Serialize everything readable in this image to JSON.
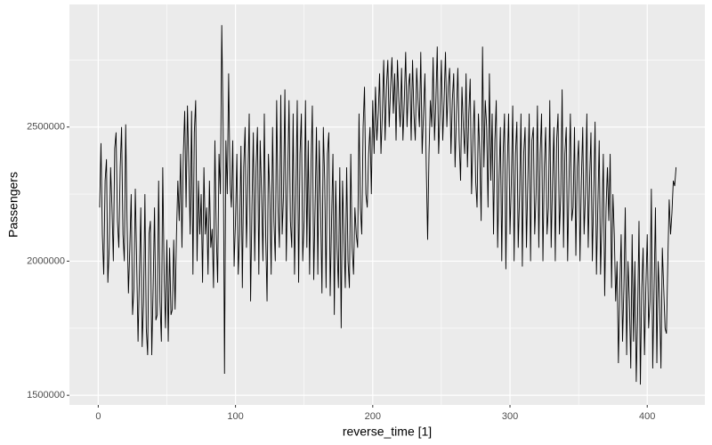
{
  "chart_data": {
    "type": "line",
    "x_label": "reverse_time [1]",
    "y_label": "Passengers",
    "xlim": [
      -21,
      442
    ],
    "ylim": [
      1464000,
      2957000
    ],
    "xticks": [
      0,
      100,
      200,
      300,
      400
    ],
    "yticks": [
      1500000,
      2000000,
      2500000
    ],
    "minor_xticks": [
      50,
      150,
      250,
      350
    ],
    "minor_yticks": [
      1750000,
      2250000,
      2750000
    ],
    "grid": true,
    "background": "#ebebeb",
    "series": [
      {
        "color": "#000000",
        "x": [
          1,
          2,
          3,
          4,
          5,
          6,
          7,
          8,
          9,
          10,
          11,
          12,
          13,
          14,
          15,
          16,
          17,
          18,
          19,
          20,
          21,
          22,
          23,
          24,
          25,
          26,
          27,
          28,
          29,
          30,
          31,
          32,
          33,
          34,
          35,
          36,
          37,
          38,
          39,
          40,
          41,
          42,
          43,
          44,
          45,
          46,
          47,
          48,
          49,
          50,
          51,
          52,
          53,
          54,
          55,
          56,
          57,
          58,
          59,
          60,
          61,
          62,
          63,
          64,
          65,
          66,
          67,
          68,
          69,
          70,
          71,
          72,
          73,
          74,
          75,
          76,
          77,
          78,
          79,
          80,
          81,
          82,
          83,
          84,
          85,
          86,
          87,
          88,
          89,
          90,
          91,
          92,
          93,
          94,
          95,
          96,
          97,
          98,
          99,
          100,
          101,
          102,
          103,
          104,
          105,
          106,
          107,
          108,
          109,
          110,
          111,
          112,
          113,
          114,
          115,
          116,
          117,
          118,
          119,
          120,
          121,
          122,
          123,
          124,
          125,
          126,
          127,
          128,
          129,
          130,
          131,
          132,
          133,
          134,
          135,
          136,
          137,
          138,
          139,
          140,
          141,
          142,
          143,
          144,
          145,
          146,
          147,
          148,
          149,
          150,
          151,
          152,
          153,
          154,
          155,
          156,
          157,
          158,
          159,
          160,
          161,
          162,
          163,
          164,
          165,
          166,
          167,
          168,
          169,
          170,
          171,
          172,
          173,
          174,
          175,
          176,
          177,
          178,
          179,
          180,
          181,
          182,
          183,
          184,
          185,
          186,
          187,
          188,
          189,
          190,
          191,
          192,
          193,
          194,
          195,
          196,
          197,
          198,
          199,
          200,
          201,
          202,
          203,
          204,
          205,
          206,
          207,
          208,
          209,
          210,
          211,
          212,
          213,
          214,
          215,
          216,
          217,
          218,
          219,
          220,
          221,
          222,
          223,
          224,
          225,
          226,
          227,
          228,
          229,
          230,
          231,
          232,
          233,
          234,
          235,
          236,
          237,
          238,
          239,
          240,
          241,
          242,
          243,
          244,
          245,
          246,
          247,
          248,
          249,
          250,
          251,
          252,
          253,
          254,
          255,
          256,
          257,
          258,
          259,
          260,
          261,
          262,
          263,
          264,
          265,
          266,
          267,
          268,
          269,
          270,
          271,
          272,
          273,
          274,
          275,
          276,
          277,
          278,
          279,
          280,
          281,
          282,
          283,
          284,
          285,
          286,
          287,
          288,
          289,
          290,
          291,
          292,
          293,
          294,
          295,
          296,
          297,
          298,
          299,
          300,
          301,
          302,
          303,
          304,
          305,
          306,
          307,
          308,
          309,
          310,
          311,
          312,
          313,
          314,
          315,
          316,
          317,
          318,
          319,
          320,
          321,
          322,
          323,
          324,
          325,
          326,
          327,
          328,
          329,
          330,
          331,
          332,
          333,
          334,
          335,
          336,
          337,
          338,
          339,
          340,
          341,
          342,
          343,
          344,
          345,
          346,
          347,
          348,
          349,
          350,
          351,
          352,
          353,
          354,
          355,
          356,
          357,
          358,
          359,
          360,
          361,
          362,
          363,
          364,
          365,
          366,
          367,
          368,
          369,
          370,
          371,
          372,
          373,
          374,
          375,
          376,
          377,
          378,
          379,
          380,
          381,
          382,
          383,
          384,
          385,
          386,
          387,
          388,
          389,
          390,
          391,
          392,
          393,
          394,
          395,
          396,
          397,
          398,
          399,
          400,
          401,
          402,
          403,
          404,
          405,
          406,
          407,
          408,
          409,
          410,
          411,
          412,
          413,
          414,
          415,
          416,
          417,
          418,
          419,
          420,
          421
        ],
        "values": [
          2200000,
          2440000,
          2100000,
          1950000,
          2300000,
          2380000,
          1920000,
          2050000,
          2350000,
          2200000,
          2000000,
          2420000,
          2480000,
          2150000,
          2050000,
          2350000,
          2500000,
          2100000,
          2000000,
          2510000,
          2150000,
          1880000,
          2050000,
          2250000,
          1800000,
          1900000,
          2270000,
          2000000,
          1700000,
          1950000,
          2200000,
          1680000,
          1850000,
          2250000,
          1750000,
          1650000,
          2100000,
          2150000,
          1650000,
          1900000,
          2200000,
          1780000,
          1800000,
          2300000,
          1850000,
          1700000,
          2350000,
          1950000,
          1750000,
          2080000,
          1700000,
          2050000,
          1800000,
          1820000,
          2080000,
          1820000,
          2100000,
          2300000,
          2150000,
          2400000,
          2050000,
          2400000,
          2560000,
          2200000,
          2580000,
          2350000,
          2100000,
          2560000,
          1950000,
          2480000,
          2600000,
          2000000,
          2300000,
          2100000,
          2250000,
          1920000,
          2350000,
          2100000,
          2200000,
          1950000,
          2300000,
          2050000,
          2120000,
          1900000,
          2450000,
          2100000,
          1920000,
          2400000,
          2250000,
          2880000,
          2500000,
          1580000,
          2450000,
          2250000,
          2700000,
          2300000,
          2200000,
          2450000,
          1980000,
          2150000,
          2400000,
          1950000,
          2100000,
          2430000,
          1900000,
          2350000,
          2500000,
          2050000,
          2300000,
          2550000,
          1850000,
          2200000,
          2480000,
          2000000,
          2350000,
          2500000,
          1950000,
          2450000,
          2250000,
          2000000,
          2550000,
          2100000,
          1850000,
          2400000,
          2250000,
          1950000,
          2500000,
          2150000,
          2000000,
          2600000,
          2200000,
          2050000,
          2620000,
          2100000,
          2250000,
          2640000,
          2000000,
          2300000,
          2600000,
          2150000,
          2050000,
          2550000,
          1950000,
          2250000,
          2600000,
          1920000,
          2400000,
          2550000,
          2000000,
          2150000,
          2600000,
          2050000,
          2450000,
          1950000,
          2350000,
          2580000,
          1930000,
          2200000,
          2500000,
          1950000,
          2450000,
          2200000,
          1880000,
          2500000,
          2300000,
          1900000,
          2400000,
          2480000,
          1870000,
          2150000,
          2400000,
          1800000,
          2300000,
          2050000,
          1900000,
          2350000,
          1750000,
          2300000,
          2100000,
          1900000,
          2350000,
          2000000,
          1900000,
          2400000,
          2050000,
          1950000,
          2200000,
          2100000,
          2050000,
          2550000,
          2200000,
          2100000,
          2500000,
          2650000,
          2250000,
          2200000,
          2400000,
          2500000,
          2250000,
          2600000,
          2400000,
          2650000,
          2450000,
          2550000,
          2700000,
          2400000,
          2550000,
          2750000,
          2450000,
          2650000,
          2750000,
          2500000,
          2650000,
          2760000,
          2550000,
          2700000,
          2450000,
          2750000,
          2600000,
          2500000,
          2720000,
          2450000,
          2600000,
          2780000,
          2500000,
          2650000,
          2700000,
          2450000,
          2750000,
          2550000,
          2450000,
          2720000,
          2600000,
          2500000,
          2780000,
          2400000,
          2550000,
          2700000,
          2350000,
          2080000,
          2400000,
          2600000,
          2500000,
          2760000,
          2450000,
          2600000,
          2800000,
          2400000,
          2550000,
          2750000,
          2450000,
          2600000,
          2780000,
          2500000,
          2650000,
          2720000,
          2400000,
          2600000,
          2700000,
          2350000,
          2550000,
          2720000,
          2450000,
          2300000,
          2650000,
          2500000,
          2400000,
          2700000,
          2350000,
          2550000,
          2680000,
          2250000,
          2450000,
          2600000,
          2300000,
          2200000,
          2550000,
          2400000,
          2150000,
          2800000,
          2350000,
          2600000,
          2500000,
          2200000,
          2700000,
          2300000,
          2550000,
          2100000,
          2450000,
          2600000,
          2050000,
          2300000,
          2500000,
          2000000,
          2400000,
          2550000,
          1970000,
          2350000,
          2550000,
          2100000,
          2300000,
          2580000,
          2000000,
          2400000,
          2520000,
          2050000,
          2250000,
          2550000,
          1980000,
          2400000,
          2500000,
          2050000,
          2300000,
          2550000,
          2000000,
          2450000,
          2500000,
          2100000,
          2250000,
          2580000,
          2050000,
          2400000,
          2550000,
          2000000,
          2350000,
          2500000,
          2100000,
          2200000,
          2600000,
          2050000,
          2300000,
          2500000,
          2000000,
          2450000,
          2550000,
          2100000,
          2250000,
          2640000,
          2050000,
          2400000,
          2500000,
          2000000,
          2300000,
          2550000,
          2150000,
          2200000,
          2500000,
          2020000,
          2350000,
          2450000,
          2000000,
          2300000,
          2500000,
          2100000,
          2250000,
          2550000,
          2050000,
          2300000,
          2480000,
          2000000,
          2250000,
          2520000,
          1950000,
          2200000,
          2450000,
          1950000,
          2150000,
          2400000,
          1870000,
          2200000,
          2350000,
          2150000,
          2400000,
          1900000,
          2250000,
          2100000,
          1850000,
          2000000,
          1620000,
          1900000,
          2100000,
          1700000,
          1900000,
          2200000,
          1650000,
          2000000,
          1850000,
          1600000,
          2100000,
          1700000,
          2000000,
          1550000,
          1800000,
          2150000,
          1540000,
          1900000,
          2050000,
          1650000,
          1900000,
          2100000,
          1750000,
          1850000,
          2270000,
          1600000,
          1900000,
          2200000,
          1620000,
          2000000,
          1850000,
          1600000,
          2050000,
          1900000,
          1750000,
          1730000,
          2000000,
          2230000,
          2100000,
          2180000,
          2300000,
          2280000,
          2350000
        ]
      }
    ]
  }
}
